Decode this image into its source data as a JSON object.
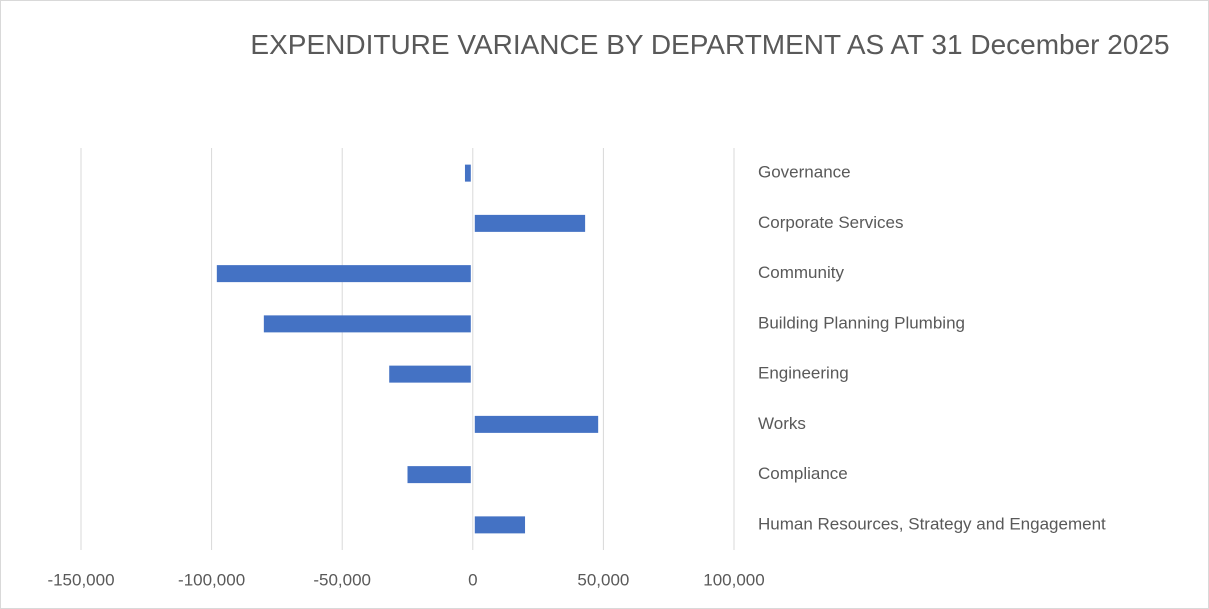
{
  "chart_data": {
    "type": "barh",
    "title": "EXPENDITURE VARIANCE BY DEPARTMENT AS AT 31 December 2025",
    "categories": [
      "Governance",
      "Corporate Services",
      "Community",
      "Building Planning Plumbing",
      "Engineering",
      "Works",
      "Compliance",
      "Human Resources, Strategy and Engagement"
    ],
    "values": [
      -3000,
      43000,
      -98000,
      -80000,
      -32000,
      48000,
      -25000,
      20000
    ],
    "color": "#4472c4",
    "xlim": [
      -150000,
      100000
    ],
    "xticks": [
      {
        "value": -150000,
        "label": "-150,000"
      },
      {
        "value": -100000,
        "label": "-100,000"
      },
      {
        "value": -50000,
        "label": "-50,000"
      },
      0,
      {
        "value": 50000,
        "label": "50,000"
      },
      {
        "value": 100000,
        "label": "100,000"
      }
    ],
    "grid": true
  }
}
